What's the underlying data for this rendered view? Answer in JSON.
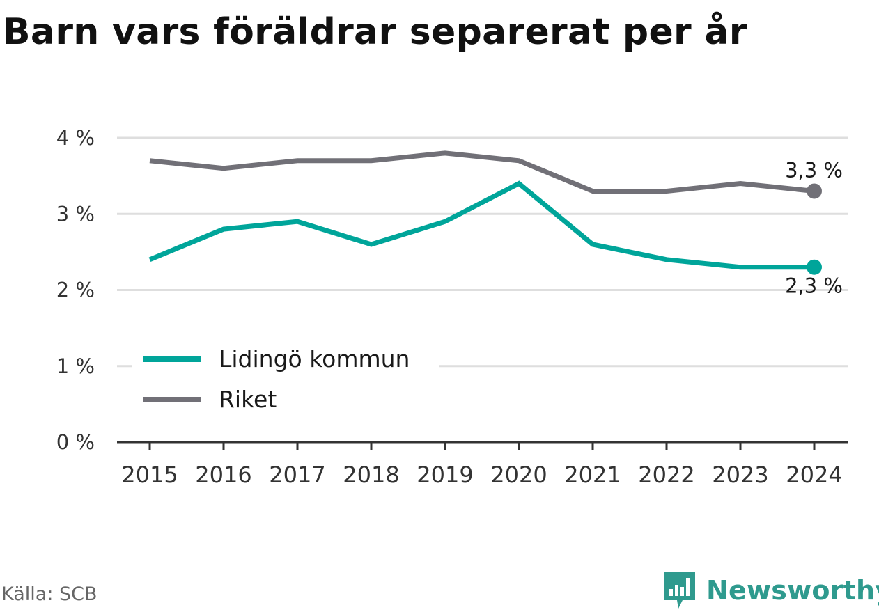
{
  "title": "Barn vars föräldrar separerat per år",
  "source": "Källa: SCB",
  "brand": {
    "name": "Newsworthy",
    "icon": "bar-chart-bubble-icon",
    "color": "#2f9a8e"
  },
  "chart_data": {
    "type": "line",
    "title": "Barn vars föräldrar separerat per år",
    "x": [
      "2015",
      "2016",
      "2017",
      "2018",
      "2019",
      "2020",
      "2021",
      "2022",
      "2023",
      "2024"
    ],
    "ylim": [
      0,
      4
    ],
    "yticks": [
      0,
      1,
      2,
      3,
      4
    ],
    "ytick_labels": [
      "0 %",
      "1 %",
      "2 %",
      "3 %",
      "4 %"
    ],
    "grid": true,
    "legend": "lower-left",
    "series": [
      {
        "name": "Lidingö kommun",
        "color": "#00a59a",
        "values": [
          2.4,
          2.8,
          2.9,
          2.6,
          2.9,
          3.4,
          2.6,
          2.4,
          2.3,
          2.3
        ],
        "end_label": "2,3 %"
      },
      {
        "name": "Riket",
        "color": "#717077",
        "values": [
          3.7,
          3.6,
          3.7,
          3.7,
          3.8,
          3.7,
          3.3,
          3.3,
          3.4,
          3.3
        ],
        "end_label": "3,3 %"
      }
    ]
  }
}
